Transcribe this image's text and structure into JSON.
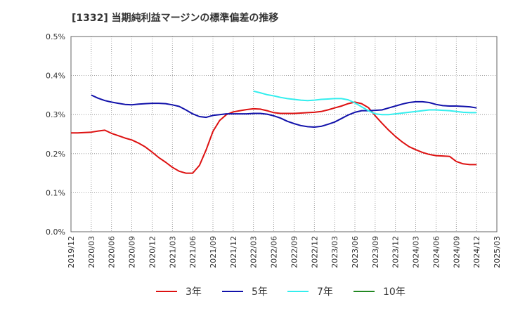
{
  "chart_data": {
    "type": "line",
    "title": "[1332]  当期純利益マージンの標準偏差の推移",
    "xlabel": "",
    "ylabel": "",
    "x_start": "2019-12",
    "x_end": "2025-03",
    "x_ticks": [
      "2019/12",
      "2020/03",
      "2020/06",
      "2020/09",
      "2020/12",
      "2021/03",
      "2021/06",
      "2021/09",
      "2021/12",
      "2022/03",
      "2022/06",
      "2022/09",
      "2022/12",
      "2023/03",
      "2023/06",
      "2023/09",
      "2023/12",
      "2024/03",
      "2024/06",
      "2024/09",
      "2024/12",
      "2025/03"
    ],
    "y_ticks": [
      "0.0%",
      "0.1%",
      "0.2%",
      "0.3%",
      "0.4%",
      "0.5%"
    ],
    "ylim": [
      0,
      0.5
    ],
    "y_unit": "%",
    "grid": true,
    "legend_position": "bottom",
    "series": [
      {
        "name": "3年",
        "color": "#dd1111",
        "x": [
          "2019-12",
          "2020-01",
          "2020-02",
          "2020-03",
          "2020-04",
          "2020-05",
          "2020-06",
          "2020-07",
          "2020-08",
          "2020-09",
          "2020-10",
          "2020-11",
          "2020-12",
          "2021-01",
          "2021-02",
          "2021-03",
          "2021-04",
          "2021-05",
          "2021-06",
          "2021-07",
          "2021-08",
          "2021-09",
          "2021-10",
          "2021-11",
          "2021-12",
          "2022-01",
          "2022-02",
          "2022-03",
          "2022-04",
          "2022-05",
          "2022-06",
          "2022-07",
          "2022-08",
          "2022-09",
          "2022-10",
          "2022-11",
          "2022-12",
          "2023-01",
          "2023-02",
          "2023-03",
          "2023-04",
          "2023-05",
          "2023-06",
          "2023-07",
          "2023-08",
          "2023-09",
          "2023-10",
          "2023-11",
          "2023-12",
          "2024-01",
          "2024-02",
          "2024-03",
          "2024-04",
          "2024-05",
          "2024-06",
          "2024-07",
          "2024-08",
          "2024-09",
          "2024-10",
          "2024-11",
          "2024-12"
        ],
        "values": [
          0.253,
          0.253,
          0.254,
          0.255,
          0.258,
          0.26,
          0.252,
          0.246,
          0.24,
          0.235,
          0.227,
          0.217,
          0.204,
          0.19,
          0.178,
          0.165,
          0.155,
          0.15,
          0.15,
          0.17,
          0.21,
          0.257,
          0.285,
          0.3,
          0.307,
          0.31,
          0.313,
          0.315,
          0.314,
          0.31,
          0.305,
          0.303,
          0.303,
          0.303,
          0.304,
          0.305,
          0.306,
          0.308,
          0.312,
          0.317,
          0.322,
          0.328,
          0.332,
          0.328,
          0.318,
          0.297,
          0.278,
          0.26,
          0.244,
          0.23,
          0.218,
          0.21,
          0.203,
          0.198,
          0.195,
          0.194,
          0.193,
          0.18,
          0.174,
          0.172,
          0.172
        ]
      },
      {
        "name": "5年",
        "color": "#1111aa",
        "x": [
          "2020-03",
          "2020-04",
          "2020-05",
          "2020-06",
          "2020-07",
          "2020-08",
          "2020-09",
          "2020-10",
          "2020-11",
          "2020-12",
          "2021-01",
          "2021-02",
          "2021-03",
          "2021-04",
          "2021-05",
          "2021-06",
          "2021-07",
          "2021-08",
          "2021-09",
          "2021-10",
          "2021-11",
          "2021-12",
          "2022-01",
          "2022-02",
          "2022-03",
          "2022-04",
          "2022-05",
          "2022-06",
          "2022-07",
          "2022-08",
          "2022-09",
          "2022-10",
          "2022-11",
          "2022-12",
          "2023-01",
          "2023-02",
          "2023-03",
          "2023-04",
          "2023-05",
          "2023-06",
          "2023-07",
          "2023-08",
          "2023-09",
          "2023-10",
          "2023-11",
          "2023-12",
          "2024-01",
          "2024-02",
          "2024-03",
          "2024-04",
          "2024-05",
          "2024-06",
          "2024-07",
          "2024-08",
          "2024-09",
          "2024-10",
          "2024-11",
          "2024-12"
        ],
        "values": [
          0.35,
          0.342,
          0.336,
          0.332,
          0.329,
          0.326,
          0.325,
          0.327,
          0.328,
          0.329,
          0.329,
          0.328,
          0.325,
          0.321,
          0.312,
          0.302,
          0.295,
          0.293,
          0.298,
          0.3,
          0.302,
          0.302,
          0.302,
          0.302,
          0.303,
          0.303,
          0.301,
          0.297,
          0.291,
          0.283,
          0.277,
          0.272,
          0.269,
          0.268,
          0.27,
          0.275,
          0.281,
          0.29,
          0.299,
          0.306,
          0.31,
          0.31,
          0.311,
          0.312,
          0.317,
          0.322,
          0.327,
          0.331,
          0.333,
          0.333,
          0.331,
          0.326,
          0.323,
          0.322,
          0.322,
          0.321,
          0.32,
          0.317
        ]
      },
      {
        "name": "7年",
        "color": "#33eeee",
        "x": [
          "2022-03",
          "2022-04",
          "2022-05",
          "2022-06",
          "2022-07",
          "2022-08",
          "2022-09",
          "2022-10",
          "2022-11",
          "2022-12",
          "2023-01",
          "2023-02",
          "2023-03",
          "2023-04",
          "2023-05",
          "2023-06",
          "2023-07",
          "2023-08",
          "2023-09",
          "2023-10",
          "2023-11",
          "2023-12",
          "2024-01",
          "2024-02",
          "2024-03",
          "2024-04",
          "2024-05",
          "2024-06",
          "2024-07",
          "2024-08",
          "2024-09",
          "2024-10",
          "2024-11",
          "2024-12"
        ],
        "values": [
          0.36,
          0.356,
          0.351,
          0.348,
          0.344,
          0.341,
          0.339,
          0.337,
          0.336,
          0.337,
          0.339,
          0.34,
          0.341,
          0.341,
          0.338,
          0.33,
          0.32,
          0.31,
          0.302,
          0.3,
          0.3,
          0.302,
          0.304,
          0.306,
          0.308,
          0.31,
          0.312,
          0.312,
          0.311,
          0.31,
          0.308,
          0.306,
          0.305,
          0.305
        ]
      },
      {
        "name": "10年",
        "color": "#228822",
        "x": [],
        "values": []
      }
    ]
  }
}
